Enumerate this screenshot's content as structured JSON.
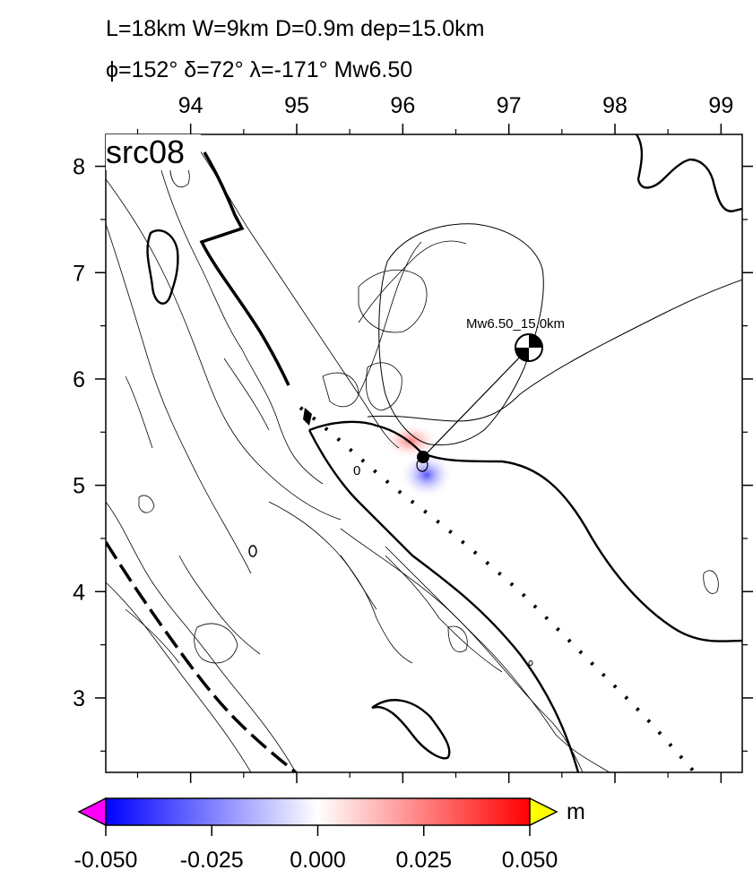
{
  "header": {
    "line1": "L=18km W=9km D=0.9m dep=15.0km",
    "line2": "ϕ=152° δ=72° λ=-171° Mw6.50"
  },
  "map": {
    "source_label": "src08",
    "event_label": "Mw6.50_15.0km",
    "contour_label": "0",
    "lon_ticks": [
      "94",
      "95",
      "96",
      "97",
      "98",
      "99"
    ],
    "lat_ticks": [
      "8",
      "7",
      "6",
      "5",
      "4",
      "3"
    ],
    "lon_range": [
      93.2,
      99.2
    ],
    "lat_range": [
      2.3,
      8.3
    ],
    "epicenter": {
      "lon": 96.2,
      "lat": 5.28
    },
    "beachball_display": {
      "lon": 97.2,
      "lat": 6.3
    }
  },
  "colorbar": {
    "unit": "m",
    "tick_labels": [
      "-0.050",
      "-0.025",
      "0.000",
      "0.025",
      "0.050"
    ],
    "range": [
      -0.05,
      0.05
    ],
    "colors": {
      "low": "#0000ff",
      "mid": "#ffffff",
      "high": "#ff0000",
      "under": "#ff00ff",
      "over": "#ffff00"
    }
  }
}
